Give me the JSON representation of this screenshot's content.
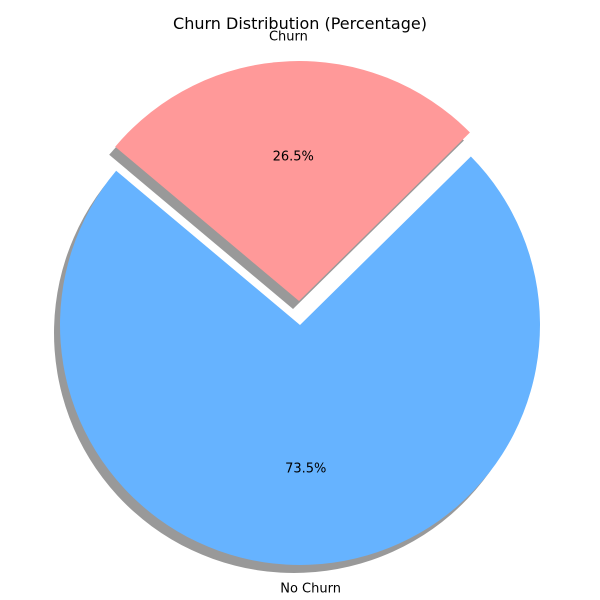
{
  "chart_data": {
    "type": "pie",
    "title": "Churn Distribution (Percentage)",
    "slices": [
      {
        "label": "No Churn",
        "value": 73.5,
        "pct_label": "73.5%",
        "color": "#66b3ff",
        "exploded": false
      },
      {
        "label": "Churn",
        "value": 26.5,
        "pct_label": "26.5%",
        "color": "#ff9999",
        "exploded": true
      }
    ],
    "shadow": true,
    "legend": "none"
  }
}
